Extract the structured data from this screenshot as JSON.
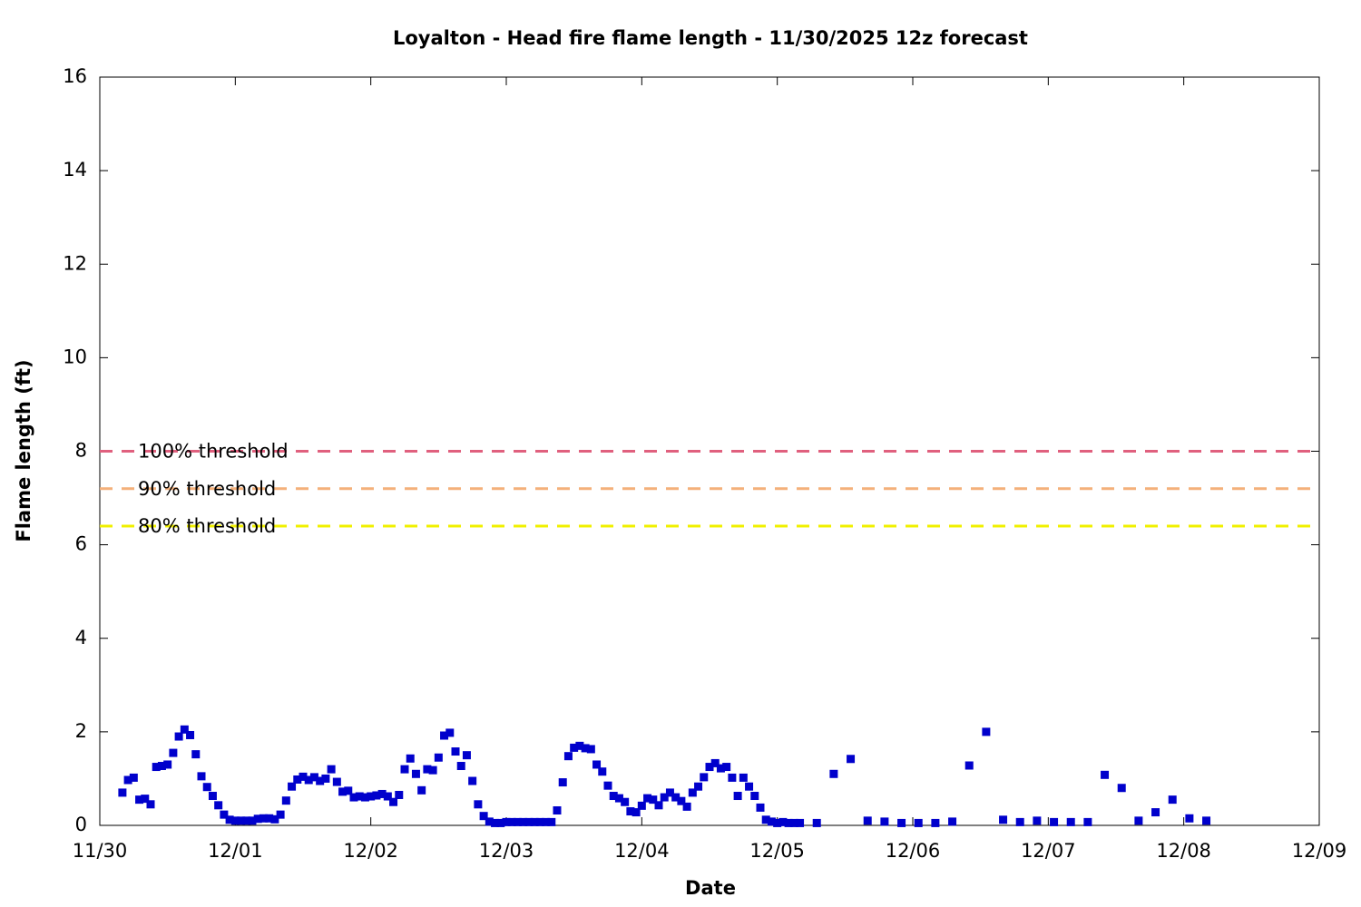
{
  "chart_data": {
    "type": "scatter",
    "title": "Loyalton - Head fire flame length - 11/30/2025 12z forecast",
    "x_label": "Date",
    "y_label": "Flame length (ft)",
    "x": [
      4,
      5,
      6,
      7,
      8,
      9,
      10,
      11,
      12,
      13,
      14,
      15,
      16,
      17,
      18,
      19,
      20,
      21,
      22,
      23,
      24,
      25,
      26,
      27,
      28,
      29,
      30,
      31,
      32,
      33,
      34,
      35,
      36,
      37,
      38,
      39,
      40,
      41,
      42,
      43,
      44,
      45,
      46,
      47,
      48,
      49,
      50,
      51,
      52,
      53,
      54,
      55,
      56,
      57,
      58,
      59,
      60,
      61,
      62,
      63,
      64,
      65,
      66,
      67,
      68,
      69,
      70,
      71,
      72,
      73,
      74,
      75,
      76,
      77,
      78,
      79,
      80,
      81,
      82,
      83,
      84,
      85,
      86,
      87,
      88,
      89,
      90,
      91,
      92,
      93,
      94,
      95,
      96,
      97,
      98,
      99,
      100,
      101,
      102,
      103,
      104,
      105,
      106,
      107,
      108,
      109,
      110,
      111,
      112,
      113,
      114,
      115,
      116,
      117,
      118,
      119,
      120,
      121,
      122,
      123,
      124,
      127,
      130,
      133,
      136,
      139,
      142,
      145,
      148,
      151,
      154,
      157,
      160,
      163,
      166,
      169,
      172,
      175,
      178,
      181,
      184,
      187,
      190,
      193,
      196
    ],
    "values": [
      0.7,
      0.97,
      1.02,
      0.55,
      0.57,
      0.45,
      1.25,
      1.27,
      1.3,
      1.55,
      1.9,
      2.05,
      1.93,
      1.52,
      1.05,
      0.82,
      0.63,
      0.43,
      0.23,
      0.12,
      0.1,
      0.1,
      0.1,
      0.1,
      0.14,
      0.15,
      0.15,
      0.13,
      0.23,
      0.53,
      0.83,
      0.98,
      1.04,
      0.97,
      1.03,
      0.95,
      1.0,
      1.2,
      0.93,
      0.72,
      0.74,
      0.6,
      0.62,
      0.6,
      0.62,
      0.64,
      0.67,
      0.62,
      0.5,
      0.65,
      1.2,
      1.43,
      1.1,
      0.75,
      1.2,
      1.18,
      1.45,
      1.92,
      1.98,
      1.58,
      1.27,
      1.5,
      0.95,
      0.45,
      0.2,
      0.08,
      0.05,
      0.05,
      0.07,
      0.07,
      0.07,
      0.07,
      0.07,
      0.07,
      0.07,
      0.07,
      0.07,
      0.32,
      0.92,
      1.48,
      1.66,
      1.7,
      1.65,
      1.63,
      1.3,
      1.15,
      0.85,
      0.63,
      0.58,
      0.5,
      0.3,
      0.28,
      0.42,
      0.58,
      0.55,
      0.43,
      0.6,
      0.7,
      0.6,
      0.52,
      0.4,
      0.7,
      0.83,
      1.03,
      1.25,
      1.33,
      1.22,
      1.25,
      1.02,
      0.63,
      1.02,
      0.83,
      0.63,
      0.38,
      0.12,
      0.08,
      0.05,
      0.07,
      0.05,
      0.05,
      0.05,
      0.05,
      1.1,
      1.42,
      0.1,
      0.08,
      0.05,
      0.05,
      0.05,
      0.08,
      1.28,
      2.0,
      0.12,
      0.07,
      0.1,
      0.07,
      0.07,
      0.07,
      1.08,
      0.8,
      0.1,
      0.28,
      0.55,
      0.15,
      0.1
    ],
    "color": "#0000cc",
    "thresholds": [
      {
        "name": "100% threshold",
        "value": 8,
        "color": "#e0607e"
      },
      {
        "name": "90% threshold",
        "value": 7.2,
        "color": "#f4b07a"
      },
      {
        "name": "80% threshold",
        "value": 6.4,
        "color": "#f0f000"
      }
    ],
    "xlim": [
      0,
      216
    ],
    "xticks": [
      {
        "value": 0,
        "label": "11/30"
      },
      {
        "value": 24,
        "label": "12/01"
      },
      {
        "value": 48,
        "label": "12/02"
      },
      {
        "value": 72,
        "label": "12/03"
      },
      {
        "value": 96,
        "label": "12/04"
      },
      {
        "value": 120,
        "label": "12/05"
      },
      {
        "value": 144,
        "label": "12/06"
      },
      {
        "value": 168,
        "label": "12/07"
      },
      {
        "value": 192,
        "label": "12/08"
      },
      {
        "value": 216,
        "label": "12/09"
      }
    ],
    "ylim": [
      0,
      16
    ],
    "yticks": [
      0,
      2,
      4,
      6,
      8,
      10,
      12,
      14,
      16
    ]
  }
}
